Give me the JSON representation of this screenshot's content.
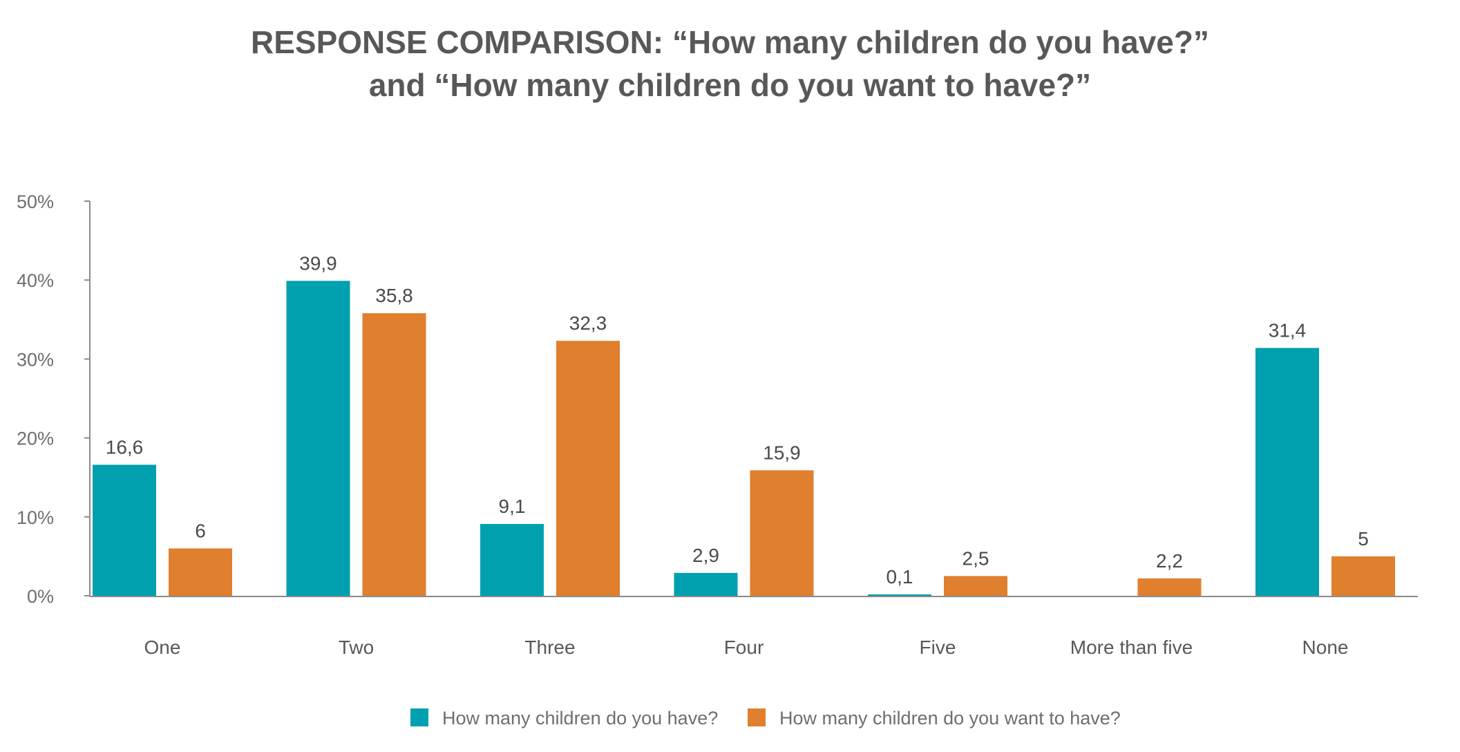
{
  "chart_data": {
    "type": "bar",
    "title_line1": "RESPONSE COMPARISON: “How many children do you have?”",
    "title_line2": "and “How many children do you want to have?”",
    "categories": [
      "One",
      "Two",
      "Three",
      "Four",
      "Five",
      "More than five",
      "None"
    ],
    "series": [
      {
        "name": "How many children do you have?",
        "color": "#00a0b0",
        "values": [
          16.6,
          39.9,
          9.1,
          2.9,
          0.1,
          null,
          31.4
        ],
        "labels": [
          "16,6",
          "39,9",
          "9,1",
          "2,9",
          "0,1",
          "",
          "31,4"
        ]
      },
      {
        "name": "How many children do you want to have?",
        "color": "#e07f2e",
        "values": [
          6,
          35.8,
          32.3,
          15.9,
          2.5,
          2.2,
          5
        ],
        "labels": [
          "6",
          "35,8",
          "32,3",
          "15,9",
          "2,5",
          "2,2",
          "5"
        ]
      }
    ],
    "ylim": [
      0,
      50
    ],
    "yticks": [
      0,
      10,
      20,
      30,
      40,
      50
    ],
    "ytick_labels": [
      "0%",
      "10%",
      "20%",
      "30%",
      "40%",
      "50%"
    ],
    "grid": false,
    "legend_position": "bottom-center",
    "axis_color": "#8a8a8c"
  }
}
